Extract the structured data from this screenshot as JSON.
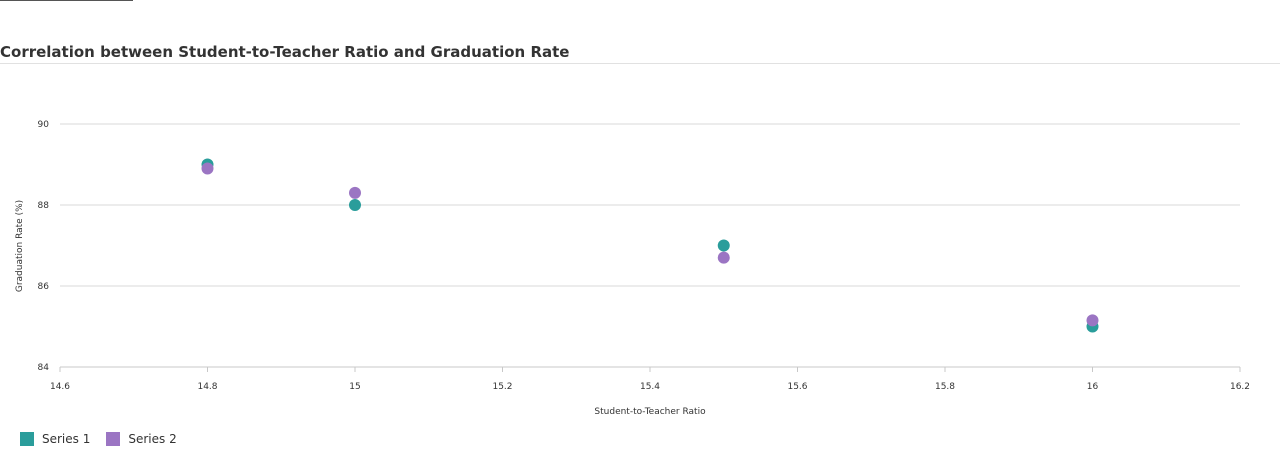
{
  "chart_data": {
    "type": "scatter",
    "title": "Correlation between Student-to-Teacher Ratio and Graduation Rate",
    "xlabel": "Student-to-Teacher Ratio",
    "ylabel": "Graduation Rate (%)",
    "xlim": [
      14.6,
      16.2
    ],
    "ylim": [
      84,
      90
    ],
    "xticks": [
      "14.6",
      "14.8",
      "15",
      "15.2",
      "15.4",
      "15.6",
      "15.8",
      "16",
      "16.2"
    ],
    "yticks": [
      "84",
      "86",
      "88",
      "90"
    ],
    "grid": "horizontal",
    "legend_position": "bottom-left",
    "series": [
      {
        "name": "Series 1",
        "color": "#2a9d9b",
        "points": [
          {
            "x": 14.8,
            "y": 89.0
          },
          {
            "x": 15.0,
            "y": 88.0
          },
          {
            "x": 15.5,
            "y": 87.0
          },
          {
            "x": 16.0,
            "y": 85.0
          }
        ]
      },
      {
        "name": "Series 2",
        "color": "#9b75c3",
        "points": [
          {
            "x": 14.8,
            "y": 88.9
          },
          {
            "x": 15.0,
            "y": 88.3
          },
          {
            "x": 15.5,
            "y": 86.7
          },
          {
            "x": 16.0,
            "y": 85.15
          }
        ]
      }
    ]
  }
}
